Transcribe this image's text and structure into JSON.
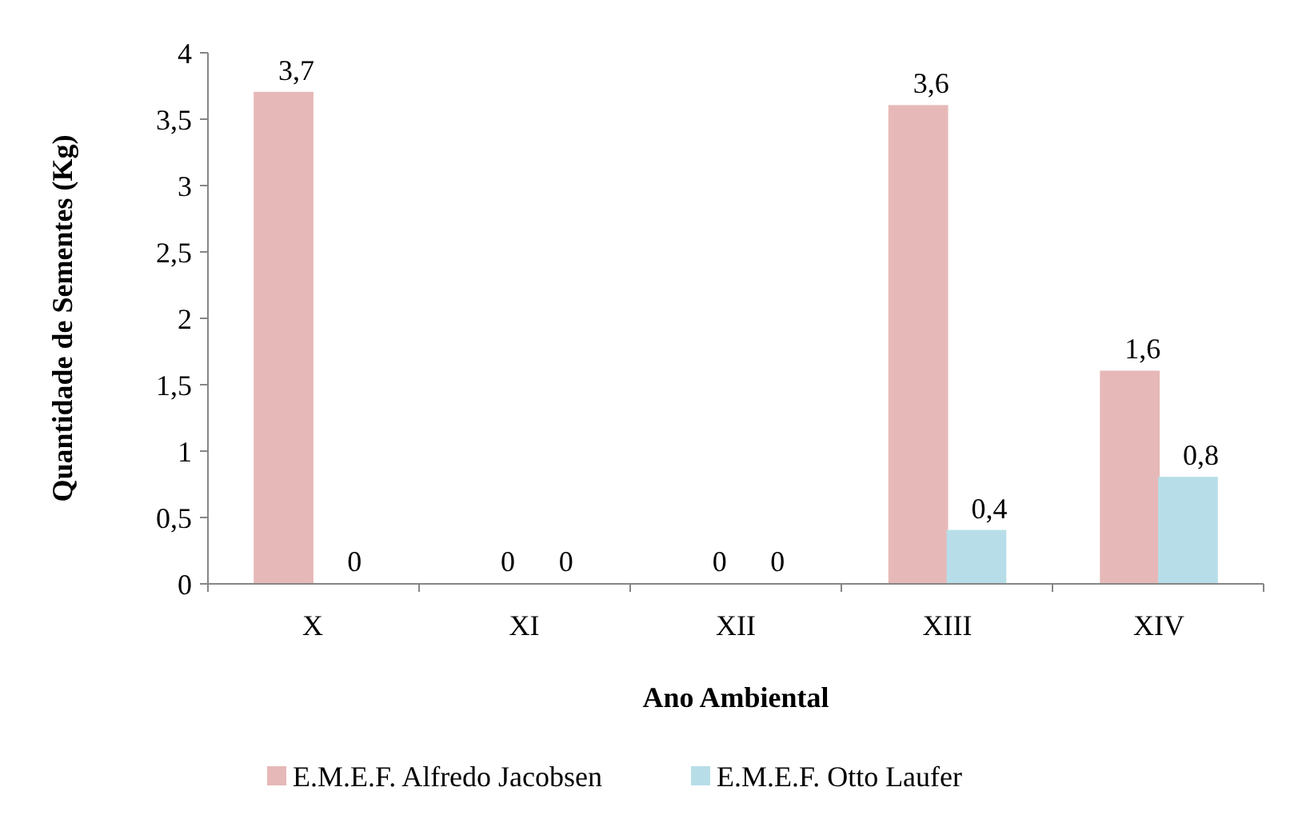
{
  "chart_data": {
    "type": "bar",
    "xlabel": "Ano Ambiental",
    "ylabel": "Quantidade de Sementes (Kg)",
    "categories": [
      "X",
      "XI",
      "XII",
      "XIII",
      "XIV"
    ],
    "series": [
      {
        "name": "E.M.E.F. Alfredo Jacobsen",
        "color": "#e6b9b8",
        "values": [
          3.7,
          0,
          0,
          3.6,
          1.6
        ],
        "value_labels": [
          "3,7",
          "0",
          "0",
          "3,6",
          "1,6"
        ]
      },
      {
        "name": "E.M.E.F. Otto Laufer",
        "color": "#b7dee8",
        "values": [
          0,
          0,
          0,
          0.4,
          0.8
        ],
        "value_labels": [
          "0",
          "0",
          "0",
          "0,4",
          "0,8"
        ]
      }
    ],
    "ylim": [
      0,
      4
    ],
    "yticks": [
      0,
      {
        "value": 0.5,
        "label": "0,5"
      },
      1,
      {
        "value": 1.5,
        "label": "1,5"
      },
      2,
      {
        "value": 2.5,
        "label": "2,5"
      },
      3,
      {
        "value": 3.5,
        "label": "3,5"
      },
      4
    ],
    "grid": false,
    "legend": "bottom"
  }
}
